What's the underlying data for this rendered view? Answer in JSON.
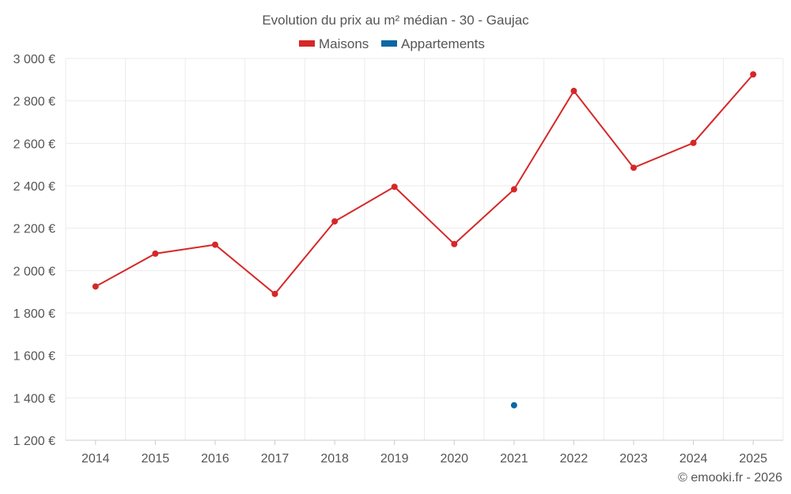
{
  "chart_data": {
    "type": "line",
    "title": "Evolution du prix au m² médian - 30 - Gaujac",
    "categories": [
      "2014",
      "2015",
      "2016",
      "2017",
      "2018",
      "2019",
      "2020",
      "2021",
      "2022",
      "2023",
      "2024",
      "2025"
    ],
    "series": [
      {
        "name": "Maisons",
        "color": "#d62728",
        "values": [
          1925,
          2080,
          2122,
          1890,
          2232,
          2395,
          2125,
          2383,
          2847,
          2485,
          2602,
          2925
        ]
      },
      {
        "name": "Appartements",
        "color": "#0a67a3",
        "values": [
          null,
          null,
          null,
          null,
          null,
          null,
          null,
          1365,
          null,
          null,
          null,
          null
        ]
      }
    ],
    "ylim": [
      1200,
      3000
    ],
    "yticks": [
      1200,
      1400,
      1600,
      1800,
      2000,
      2200,
      2400,
      2600,
      2800,
      3000
    ],
    "ytick_labels": [
      "1 200 €",
      "1 400 €",
      "1 600 €",
      "1 800 €",
      "2 000 €",
      "2 200 €",
      "2 400 €",
      "2 600 €",
      "2 800 €",
      "3 000 €"
    ],
    "legend_position": "top-center",
    "grid": true
  },
  "credit": "© emooki.fr - 2026"
}
